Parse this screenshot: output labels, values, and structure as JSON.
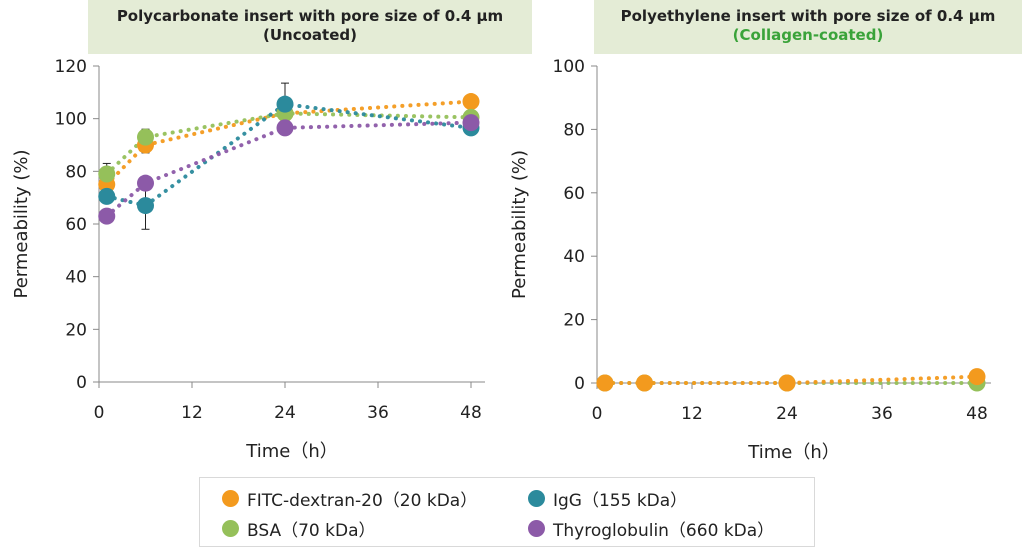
{
  "chart_data": [
    {
      "type": "scatter",
      "title": "Polycarbonate insert with pore size of 0.4 μm",
      "subtitle": "(Uncoated)",
      "xlabel": "Time（h）",
      "ylabel": "Permeability (%)",
      "xlim": [
        0,
        48
      ],
      "ylim": [
        0,
        120
      ],
      "xticks": [
        0,
        12,
        24,
        36,
        48
      ],
      "yticks": [
        0,
        20,
        40,
        60,
        80,
        100,
        120
      ],
      "grid": false,
      "trendline": "dotted",
      "series": [
        {
          "name": "FITC-dextran-20（20 kDa）",
          "color": "#f39a1e",
          "points": [
            [
              1,
              75
            ],
            [
              6,
              90
            ],
            [
              24,
              102
            ],
            [
              48,
              106.5
            ]
          ],
          "err": [
            3,
            3,
            3,
            0
          ]
        },
        {
          "name": "BSA（70 kDa）",
          "color": "#95c05a",
          "points": [
            [
              1,
              79
            ],
            [
              6,
              93
            ],
            [
              24,
              102
            ],
            [
              48,
              100.5
            ]
          ],
          "err": [
            4,
            3,
            0,
            0
          ]
        },
        {
          "name": "IgG（155 kDa）",
          "color": "#2b8a9c",
          "points": [
            [
              1,
              70.5
            ],
            [
              6,
              67
            ],
            [
              24,
              105.5
            ],
            [
              48,
              96.5
            ]
          ],
          "err": [
            0,
            9,
            8,
            0
          ]
        },
        {
          "name": "Thyroglobulin（660 kDa）",
          "color": "#8c5aa8",
          "points": [
            [
              1,
              63
            ],
            [
              6,
              75.5
            ],
            [
              24,
              96.5
            ],
            [
              48,
              98.5
            ]
          ],
          "err": [
            0,
            0,
            0,
            0
          ]
        }
      ]
    },
    {
      "type": "scatter",
      "title": "Polyethylene insert with pore size of 0.4 μm",
      "subtitle": "(Collagen-coated)",
      "xlabel": "Time（h）",
      "ylabel": "Permeability (%)",
      "xlim": [
        0,
        48
      ],
      "ylim": [
        0,
        100
      ],
      "xticks": [
        0,
        12,
        24,
        36,
        48
      ],
      "yticks": [
        0,
        20,
        40,
        60,
        80,
        100
      ],
      "grid": false,
      "trendline": "dotted",
      "series": [
        {
          "name": "BSA（70 kDa）",
          "color": "#95c05a",
          "points": [
            [
              1,
              0
            ],
            [
              6,
              0
            ],
            [
              24,
              0
            ],
            [
              48,
              0
            ]
          ],
          "err": [
            0,
            0,
            0,
            0
          ]
        },
        {
          "name": "FITC-dextran-20（20 kDa）",
          "color": "#f39a1e",
          "points": [
            [
              1,
              0
            ],
            [
              6,
              0
            ],
            [
              24,
              0
            ],
            [
              48,
              2
            ]
          ],
          "err": [
            0,
            0,
            0,
            0
          ]
        }
      ]
    }
  ],
  "legend": {
    "placement": "bottom",
    "items": [
      {
        "label": "FITC-dextran-20（20 kDa）",
        "color": "#f39a1e"
      },
      {
        "label": "IgG（155 kDa）",
        "color": "#2b8a9c"
      },
      {
        "label": "BSA（70 kDa）",
        "color": "#95c05a"
      },
      {
        "label": "Thyroglobulin（660 kDa）",
        "color": "#8c5aa8"
      }
    ]
  }
}
